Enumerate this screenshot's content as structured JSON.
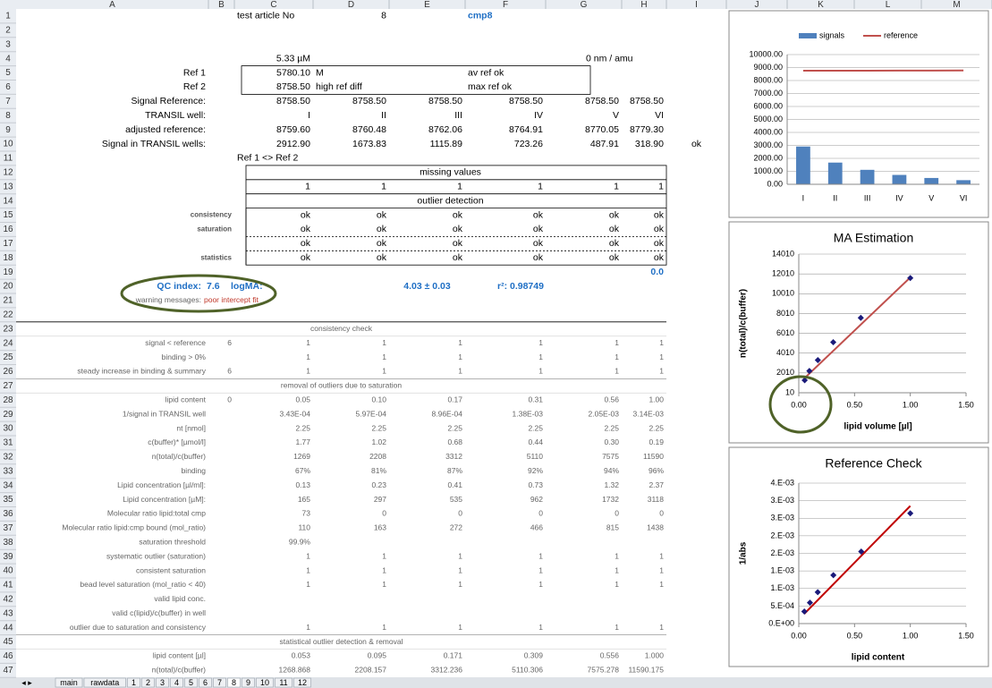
{
  "sheet": {
    "columns": [
      "A",
      "B",
      "C",
      "D",
      "E",
      "F",
      "G",
      "H",
      "I",
      "J",
      "K",
      "L",
      "M"
    ],
    "rows": [
      {
        "n": 1,
        "C": "test article No",
        "D": "8",
        "F": "cmp8"
      },
      {
        "n": 2
      },
      {
        "n": 3
      },
      {
        "n": 4,
        "C": "5.33 µM",
        "G": "0 nm / amu"
      },
      {
        "n": 5,
        "A": "Ref 1",
        "C": "5780.10",
        "D": "M",
        "F": "av ref ok"
      },
      {
        "n": 6,
        "A": "Ref 2",
        "C": "8758.50",
        "D": "high ref diff",
        "F": "max ref ok"
      },
      {
        "n": 7,
        "A": "Signal Reference:",
        "C": "8758.50",
        "D": "8758.50",
        "E": "8758.50",
        "F": "8758.50",
        "G": "8758.50",
        "H": "8758.50"
      },
      {
        "n": 8,
        "A": "TRANSIL well:",
        "C": "I",
        "D": "II",
        "E": "III",
        "F": "IV",
        "G": "V",
        "H": "VI"
      },
      {
        "n": 9,
        "A": "adjusted reference:",
        "C": "8759.60",
        "D": "8760.48",
        "E": "8762.06",
        "F": "8764.91",
        "G": "8770.05",
        "H": "8779.30"
      },
      {
        "n": 10,
        "A": "Signal in TRANSIL wells:",
        "C": "2912.90",
        "D": "1673.83",
        "E": "1115.89",
        "F": "723.26",
        "G": "487.91",
        "H": "318.90",
        "I": "ok"
      },
      {
        "n": 11,
        "C": "Ref 1 <> Ref 2"
      },
      {
        "n": 12,
        "C": "missing values"
      },
      {
        "n": 13,
        "C": "1",
        "D": "1",
        "E": "1",
        "F": "1",
        "G": "1",
        "H": "1"
      },
      {
        "n": 14,
        "C": "outlier detection"
      },
      {
        "n": 15,
        "B": "consistency",
        "C": "ok",
        "D": "ok",
        "E": "ok",
        "F": "ok",
        "G": "ok",
        "H": "ok"
      },
      {
        "n": 16,
        "B": "saturation",
        "C": "ok",
        "D": "ok",
        "E": "ok",
        "F": "ok",
        "G": "ok",
        "H": "ok"
      },
      {
        "n": 17,
        "C": "ok",
        "D": "ok",
        "E": "ok",
        "F": "ok",
        "G": "ok",
        "H": "ok"
      },
      {
        "n": 18,
        "B": "statistics",
        "C": "ok",
        "D": "ok",
        "E": "ok",
        "F": "ok",
        "G": "ok",
        "H": "ok"
      },
      {
        "n": 19,
        "H": "0.0"
      },
      {
        "n": 20,
        "A": "QC index:",
        "B": "7.6",
        "C": "logMA:",
        "E": "4.03 ± 0.03",
        "F": "r²: 0.98749"
      },
      {
        "n": 21,
        "A": "warning messages:",
        "B": "poor intercept fit"
      },
      {
        "n": 22
      },
      {
        "n": 23,
        "A": "consistency check"
      },
      {
        "n": 24,
        "A": "signal < reference",
        "B": "6",
        "C": "1",
        "D": "1",
        "E": "1",
        "F": "1",
        "G": "1",
        "H": "1"
      },
      {
        "n": 25,
        "A": "binding > 0%",
        "C": "1",
        "D": "1",
        "E": "1",
        "F": "1",
        "G": "1",
        "H": "1"
      },
      {
        "n": 26,
        "A": "steady increase in binding & summary",
        "B": "6",
        "C": "1",
        "D": "1",
        "E": "1",
        "F": "1",
        "G": "1",
        "H": "1"
      },
      {
        "n": 27,
        "A": "removal of outliers due to saturation"
      },
      {
        "n": 28,
        "A": "lipid content",
        "B": "0",
        "C": "0.05",
        "D": "0.10",
        "E": "0.17",
        "F": "0.31",
        "G": "0.56",
        "H": "1.00"
      },
      {
        "n": 29,
        "A": "1/signal in TRANSIL well",
        "C": "3.43E-04",
        "D": "5.97E-04",
        "E": "8.96E-04",
        "F": "1.38E-03",
        "G": "2.05E-03",
        "H": "3.14E-03"
      },
      {
        "n": 30,
        "A": "nt [nmol]",
        "C": "2.25",
        "D": "2.25",
        "E": "2.25",
        "F": "2.25",
        "G": "2.25",
        "H": "2.25"
      },
      {
        "n": 31,
        "A": "c(buffer)* [µmol/l]",
        "C": "1.77",
        "D": "1.02",
        "E": "0.68",
        "F": "0.44",
        "G": "0.30",
        "H": "0.19"
      },
      {
        "n": 32,
        "A": "n(total)/c(buffer)",
        "C": "1269",
        "D": "2208",
        "E": "3312",
        "F": "5110",
        "G": "7575",
        "H": "11590"
      },
      {
        "n": 33,
        "A": "binding",
        "C": "67%",
        "D": "81%",
        "E": "87%",
        "F": "92%",
        "G": "94%",
        "H": "96%"
      },
      {
        "n": 34,
        "A": "Lipid concentration [µl/ml]:",
        "C": "0.13",
        "D": "0.23",
        "E": "0.41",
        "F": "0.73",
        "G": "1.32",
        "H": "2.37"
      },
      {
        "n": 35,
        "A": "Lipid concentration [µM]:",
        "C": "165",
        "D": "297",
        "E": "535",
        "F": "962",
        "G": "1732",
        "H": "3118"
      },
      {
        "n": 36,
        "A": "Molecular ratio lipid:total cmp",
        "C": "73",
        "D": "0",
        "E": "0",
        "F": "0",
        "G": "0",
        "H": "0"
      },
      {
        "n": 37,
        "A": "Molecular ratio lipid:cmp bound (mol_ratio)",
        "C": "110",
        "D": "163",
        "E": "272",
        "F": "466",
        "G": "815",
        "H": "1438"
      },
      {
        "n": 38,
        "A": "saturation threshold",
        "C": "99.9%"
      },
      {
        "n": 39,
        "A": "systematic outlier (saturation)",
        "C": "1",
        "D": "1",
        "E": "1",
        "F": "1",
        "G": "1",
        "H": "1"
      },
      {
        "n": 40,
        "A": "consistent saturation",
        "C": "1",
        "D": "1",
        "E": "1",
        "F": "1",
        "G": "1",
        "H": "1"
      },
      {
        "n": 41,
        "A": "bead level saturation (mol_ratio < 40)",
        "C": "1",
        "D": "1",
        "E": "1",
        "F": "1",
        "G": "1",
        "H": "1"
      },
      {
        "n": 42,
        "A": "valid lipid conc."
      },
      {
        "n": 43,
        "A": "valid c(lipid)/c(buffer) in well"
      },
      {
        "n": 44,
        "A": "outlier due to saturation and consistency",
        "C": "1",
        "D": "1",
        "E": "1",
        "F": "1",
        "G": "1",
        "H": "1"
      },
      {
        "n": 45,
        "A": "statistical outlier detection & removal"
      },
      {
        "n": 46,
        "A": "lipid content [µl]",
        "C": "0.053",
        "D": "0.095",
        "E": "0.171",
        "F": "0.309",
        "G": "0.556",
        "H": "1.000"
      },
      {
        "n": 47,
        "A": "n(total)/c(buffer)",
        "C": "1268.868",
        "D": "2208.157",
        "E": "3312.236",
        "F": "5110.306",
        "G": "7575.278",
        "H": "11590.175"
      }
    ],
    "tabs": [
      "main",
      "rawdata",
      "1",
      "2",
      "3",
      "4",
      "5",
      "6",
      "7",
      "8",
      "9",
      "10",
      "11",
      "12"
    ]
  },
  "chart_data": [
    {
      "type": "bar",
      "categories": [
        "I",
        "II",
        "III",
        "IV",
        "V",
        "VI"
      ],
      "series": [
        {
          "name": "signals",
          "color": "#4f81bd",
          "kind": "bar",
          "values": [
            2912.9,
            1673.83,
            1115.89,
            723.26,
            487.91,
            318.9
          ]
        },
        {
          "name": "reference",
          "color": "#c0504d",
          "kind": "line",
          "values": [
            8759.6,
            8760.48,
            8762.06,
            8764.91,
            8770.05,
            8779.3
          ]
        }
      ],
      "ylim": [
        0,
        10000
      ],
      "yticks": [
        {
          "value": 0,
          "label": "0.00"
        },
        {
          "value": 1000,
          "label": "1000.00"
        },
        {
          "value": 2000,
          "label": "2000.00"
        },
        {
          "value": 3000,
          "label": "3000.00"
        },
        {
          "value": 4000,
          "label": "4000.00"
        },
        {
          "value": 5000,
          "label": "5000.00"
        },
        {
          "value": 6000,
          "label": "6000.00"
        },
        {
          "value": 7000,
          "label": "7000.00"
        },
        {
          "value": 8000,
          "label": "8000.00"
        },
        {
          "value": 9000,
          "label": "9000.00"
        },
        {
          "value": 10000,
          "label": "10000.00"
        }
      ],
      "grid": true
    },
    {
      "type": "scatter",
      "title": "MA Estimation",
      "xlabel": "lipid volume [µl]",
      "ylabel": "n(total)/c(buffer)",
      "series": [
        {
          "color": "#1a1a7a",
          "x": [
            0.053,
            0.095,
            0.171,
            0.309,
            0.556,
            1.0
          ],
          "values": [
            1269,
            2208,
            3312,
            5110,
            7575,
            11590
          ]
        }
      ],
      "trendline": {
        "color": "#c0504d",
        "x": [
          0.053,
          1.0
        ],
        "values": [
          1500,
          11650
        ]
      },
      "xlim": [
        0,
        1.5
      ],
      "xticks": [
        {
          "value": 0,
          "label": "0.00"
        },
        {
          "value": 0.5,
          "label": "0.50"
        },
        {
          "value": 1,
          "label": "1.00"
        },
        {
          "value": 1.5,
          "label": "1.50"
        }
      ],
      "ylim": [
        10,
        14010
      ],
      "yticks": [
        10,
        2010,
        4010,
        6010,
        8010,
        10010,
        12010,
        14010
      ],
      "grid": true
    },
    {
      "type": "scatter",
      "title": "Reference Check",
      "xlabel": "lipid content",
      "ylabel": "1/abs",
      "series": [
        {
          "color": "#1a1a7a",
          "x": [
            0.05,
            0.1,
            0.17,
            0.31,
            0.56,
            1.0
          ],
          "values": [
            0.000343,
            0.000597,
            0.000896,
            0.00138,
            0.00205,
            0.00314
          ]
        }
      ],
      "trendline": {
        "color": "#c00000",
        "x": [
          0.05,
          1.0
        ],
        "values": [
          0.00028,
          0.00335
        ]
      },
      "xlim": [
        0,
        1.5
      ],
      "xticks": [
        {
          "value": 0,
          "label": "0.00"
        },
        {
          "value": 0.5,
          "label": "0.50"
        },
        {
          "value": 1,
          "label": "1.00"
        },
        {
          "value": 1.5,
          "label": "1.50"
        }
      ],
      "ylim": [
        0,
        0.004
      ],
      "yticks": [
        {
          "value": 0,
          "label": "0.E+00"
        },
        {
          "value": 0.0005,
          "label": "5.E-04"
        },
        {
          "value": 0.001,
          "label": "1.E-03"
        },
        {
          "value": 0.0015,
          "label": "1.E-03"
        },
        {
          "value": 0.002,
          "label": "2.E-03"
        },
        {
          "value": 0.0025,
          "label": "2.E-03"
        },
        {
          "value": 0.003,
          "label": "3.E-03"
        },
        {
          "value": 0.0035,
          "label": "3.E-03"
        },
        {
          "value": 0.004,
          "label": "4.E-03"
        }
      ],
      "grid": true
    }
  ]
}
